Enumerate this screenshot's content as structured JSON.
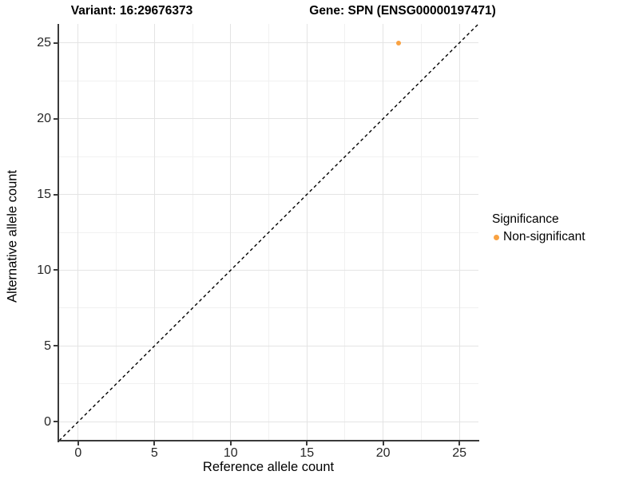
{
  "chart_data": {
    "type": "scatter",
    "title_variant": "Variant: 16:29676373",
    "title_gene": "Gene: SPN (ENSG00000197471)",
    "xlabel": "Reference allele count",
    "ylabel": "Alternative allele count",
    "xlim": [
      -1.25,
      26.25
    ],
    "ylim": [
      -1.25,
      26.25
    ],
    "x_ticks": [
      0,
      5,
      10,
      15,
      20,
      25
    ],
    "y_ticks": [
      0,
      5,
      10,
      15,
      20,
      25
    ],
    "x_minor_ticks": [
      2.5,
      7.5,
      12.5,
      17.5,
      22.5
    ],
    "y_minor_ticks": [
      2.5,
      7.5,
      12.5,
      17.5,
      22.5
    ],
    "grid": true,
    "points": [
      {
        "x": 21,
        "y": 25,
        "series": "Non-significant"
      }
    ],
    "reference_line": {
      "kind": "identity",
      "slope": 1,
      "intercept": 0,
      "style": "dashed",
      "color": "#000000"
    },
    "legend": {
      "title": "Significance",
      "position": "right",
      "entries": [
        {
          "label": "Non-significant",
          "color": "#F9A242"
        }
      ]
    }
  },
  "colors": {
    "background": "#FFFFFF",
    "axis_line": "#3A3A3A",
    "major_grid": "#E4E4E4",
    "minor_grid": "#F1F1F1",
    "tick_label": "#262626",
    "title_text": "#000000",
    "point_nonsignificant": "#F9A242"
  }
}
